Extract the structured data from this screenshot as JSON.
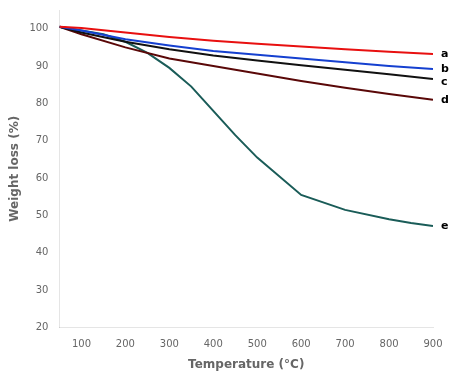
{
  "chart_data": {
    "type": "line",
    "xlabel": "Temperature (°C)",
    "ylabel": "Weight loss (%)",
    "xlim": [
      50,
      900
    ],
    "ylim": [
      20,
      105
    ],
    "xticks": [
      100,
      200,
      300,
      400,
      500,
      600,
      700,
      800,
      900
    ],
    "yticks": [
      20,
      30,
      40,
      50,
      60,
      70,
      80,
      90,
      100
    ],
    "grid": false,
    "series": [
      {
        "name": "a",
        "color": "#e81010",
        "x": [
          50,
          100,
          200,
          300,
          400,
          500,
          600,
          700,
          800,
          900
        ],
        "values": [
          100.5,
          100.2,
          99.0,
          97.8,
          96.8,
          96.0,
          95.2,
          94.5,
          93.8,
          93.2
        ]
      },
      {
        "name": "b",
        "color": "#1540d0",
        "x": [
          50,
          100,
          200,
          300,
          400,
          500,
          600,
          700,
          800,
          900
        ],
        "values": [
          100.5,
          99.5,
          97.2,
          95.5,
          94.0,
          93.0,
          92.0,
          91.0,
          90.0,
          89.2
        ]
      },
      {
        "name": "c",
        "color": "#111111",
        "x": [
          50,
          100,
          200,
          300,
          400,
          500,
          600,
          700,
          800,
          900
        ],
        "values": [
          100.5,
          99.0,
          96.5,
          94.5,
          92.8,
          91.5,
          90.2,
          89.0,
          87.8,
          86.5
        ]
      },
      {
        "name": "d",
        "color": "#5a0808",
        "x": [
          50,
          100,
          200,
          300,
          400,
          500,
          600,
          700,
          800,
          900
        ],
        "values": [
          100.5,
          98.5,
          95.0,
          92.0,
          90.0,
          88.0,
          86.0,
          84.2,
          82.5,
          81.0
        ]
      },
      {
        "name": "e",
        "color": "#1a5c58",
        "x": [
          50,
          100,
          150,
          200,
          250,
          300,
          350,
          400,
          450,
          500,
          600,
          700,
          800,
          850,
          900
        ],
        "values": [
          100.5,
          99.5,
          98.5,
          96.5,
          93.5,
          89.5,
          84.5,
          78.0,
          71.5,
          65.5,
          55.5,
          51.5,
          49.0,
          48.0,
          47.2
        ]
      }
    ]
  }
}
